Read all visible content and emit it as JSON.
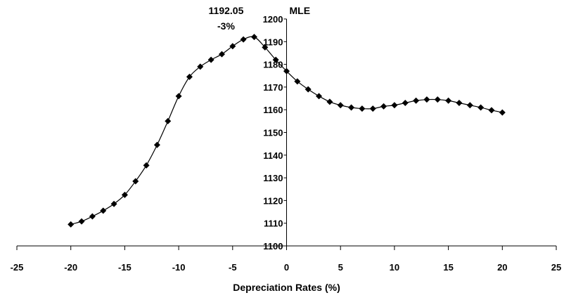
{
  "chart_data": {
    "type": "line",
    "xlabel": "Depreciation Rates (%)",
    "ylabel": "MLE",
    "xlim": [
      -25,
      25
    ],
    "ylim": [
      1100,
      1200
    ],
    "xticks": [
      -25,
      -20,
      -15,
      -10,
      -5,
      0,
      5,
      10,
      15,
      20,
      25
    ],
    "yticks": [
      1100,
      1110,
      1120,
      1130,
      1140,
      1150,
      1160,
      1170,
      1180,
      1190,
      1200
    ],
    "grid": false,
    "legend": "none",
    "marker": "diamond",
    "line_color": "#000000",
    "series": [
      {
        "x": [
          -20,
          -19,
          -18,
          -17,
          -16,
          -15,
          -14,
          -13,
          -12,
          -11,
          -10,
          -9,
          -8,
          -7,
          -6,
          -5,
          -4,
          -3,
          -2,
          -1,
          0,
          1,
          2,
          3,
          4,
          5,
          6,
          7,
          8,
          9,
          10,
          11,
          12,
          13,
          14,
          15,
          16,
          17,
          18,
          19,
          20
        ],
        "y": [
          1109.5,
          1110.8,
          1113.0,
          1115.5,
          1118.5,
          1122.5,
          1128.5,
          1135.5,
          1144.5,
          1155.0,
          1166.0,
          1174.5,
          1179.0,
          1182.0,
          1184.5,
          1188.0,
          1191.0,
          1192.05,
          1187.5,
          1182.0,
          1177.0,
          1172.5,
          1169.0,
          1166.0,
          1163.5,
          1162.0,
          1161.0,
          1160.5,
          1160.5,
          1161.5,
          1162.0,
          1163.0,
          1164.0,
          1164.5,
          1164.5,
          1164.0,
          1163.0,
          1162.0,
          1161.0,
          1159.8,
          1158.8
        ]
      }
    ],
    "annotations": [
      {
        "text": "1192.05",
        "x": -3,
        "y": 1192.05
      },
      {
        "text": "-3%",
        "x": -3,
        "y": 1192.05
      }
    ]
  }
}
